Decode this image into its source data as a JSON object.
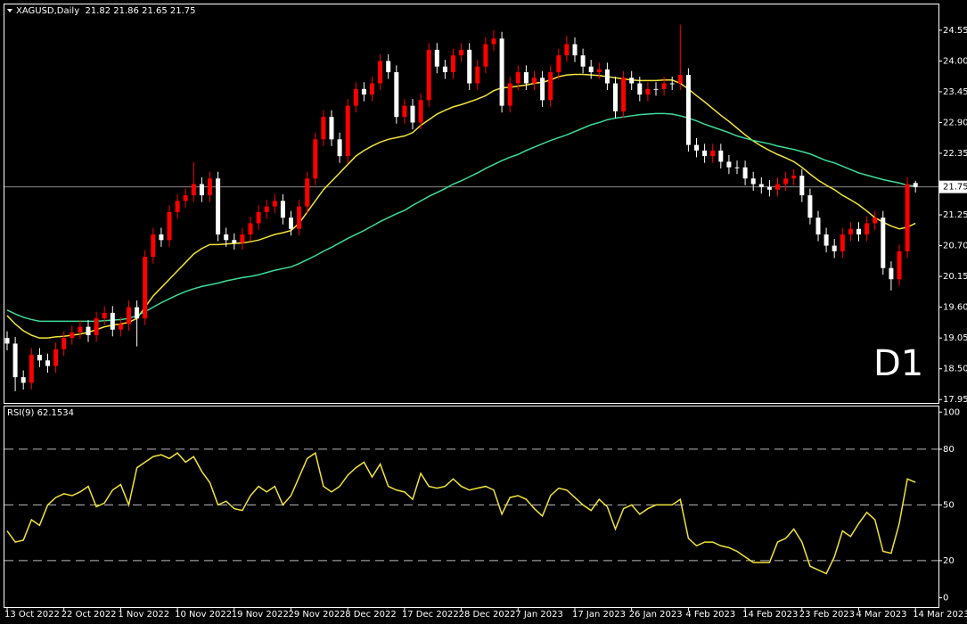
{
  "chart_data": [
    {
      "type": "candlestick",
      "title": "XAGUSD,Daily  21.82 21.86 21.65 21.75",
      "categories": [
        "13 Oct 2022",
        null,
        null,
        null,
        null,
        null,
        null,
        "22 Oct 2022",
        null,
        null,
        null,
        null,
        null,
        null,
        "1 Nov 2022",
        null,
        null,
        null,
        null,
        null,
        null,
        "10 Nov 2022",
        null,
        null,
        null,
        null,
        null,
        null,
        "19 Nov 2022",
        null,
        null,
        null,
        null,
        null,
        null,
        "29 Nov 2022",
        null,
        null,
        null,
        null,
        null,
        null,
        "8 Dec 2022",
        null,
        null,
        null,
        null,
        null,
        null,
        "17 Dec 2022",
        null,
        null,
        null,
        null,
        null,
        null,
        "28 Dec 2022",
        null,
        null,
        null,
        null,
        null,
        null,
        "7 Jan 2023",
        null,
        null,
        null,
        null,
        null,
        null,
        "17 Jan 2023",
        null,
        null,
        null,
        null,
        null,
        null,
        "26 Jan 2023",
        null,
        null,
        null,
        null,
        null,
        null,
        "4 Feb 2023",
        null,
        null,
        null,
        null,
        null,
        null,
        "14 Feb 2023",
        null,
        null,
        null,
        null,
        null,
        null,
        "23 Feb 2023",
        null,
        null,
        null,
        null,
        null,
        null,
        "4 Mar 2023",
        null,
        null,
        null,
        null,
        null,
        null,
        "14 Mar 2023"
      ],
      "open": [
        19.05,
        18.95,
        18.35,
        18.25,
        18.75,
        18.65,
        18.55,
        18.85,
        19.05,
        19.15,
        19.25,
        19.1,
        19.4,
        19.5,
        19.2,
        19.3,
        19.6,
        19.4,
        20.5,
        20.9,
        20.8,
        21.3,
        21.5,
        21.6,
        21.8,
        21.6,
        21.9,
        20.9,
        20.8,
        20.75,
        20.9,
        21.1,
        21.3,
        21.4,
        21.5,
        21.2,
        21.0,
        21.4,
        21.9,
        22.6,
        23.0,
        22.6,
        22.3,
        23.2,
        23.5,
        23.4,
        23.6,
        24.0,
        23.8,
        23.0,
        23.2,
        22.9,
        23.3,
        24.2,
        23.9,
        23.8,
        24.1,
        24.2,
        23.6,
        23.9,
        24.3,
        24.4,
        23.2,
        23.6,
        23.8,
        23.6,
        23.7,
        23.3,
        23.8,
        24.1,
        24.3,
        24.1,
        23.9,
        23.8,
        23.85,
        23.6,
        23.1,
        23.7,
        23.6,
        23.4,
        23.5,
        23.5,
        23.6,
        23.6,
        23.75,
        22.5,
        22.4,
        22.3,
        22.4,
        22.2,
        22.1,
        22.1,
        21.9,
        21.8,
        21.75,
        21.7,
        21.8,
        21.9,
        21.95,
        21.6,
        21.2,
        20.9,
        20.7,
        20.6,
        20.9,
        21.0,
        20.9,
        21.1,
        21.2,
        20.3,
        20.1,
        20.6,
        21.82
      ],
      "high": [
        19.17,
        19.07,
        18.47,
        18.87,
        18.87,
        18.77,
        18.97,
        19.17,
        19.27,
        19.37,
        19.37,
        19.52,
        19.62,
        19.62,
        19.42,
        19.72,
        19.72,
        20.62,
        21.02,
        21.02,
        21.42,
        21.62,
        21.72,
        22.2,
        21.92,
        22.02,
        22.02,
        21.02,
        20.92,
        21.02,
        21.22,
        21.42,
        21.52,
        21.62,
        21.62,
        21.32,
        21.52,
        22.02,
        22.72,
        23.12,
        23.12,
        22.72,
        23.32,
        23.62,
        23.62,
        23.72,
        24.12,
        24.12,
        23.92,
        23.32,
        23.32,
        23.42,
        24.32,
        24.32,
        24.02,
        24.22,
        24.32,
        24.32,
        24.02,
        24.42,
        24.55,
        24.52,
        23.72,
        23.92,
        23.92,
        23.82,
        23.82,
        23.92,
        24.22,
        24.45,
        24.42,
        24.22,
        24.02,
        23.97,
        23.97,
        23.72,
        23.82,
        23.82,
        23.72,
        23.62,
        23.62,
        23.72,
        23.72,
        24.65,
        23.87,
        22.62,
        22.52,
        22.52,
        22.52,
        22.32,
        22.22,
        22.22,
        22.02,
        21.92,
        21.87,
        21.92,
        22.02,
        22.07,
        22.07,
        21.72,
        21.32,
        21.02,
        20.82,
        21.02,
        21.12,
        21.12,
        21.22,
        21.32,
        21.32,
        20.42,
        20.72,
        21.92,
        21.86
      ],
      "low": [
        18.83,
        18.1,
        18.13,
        18.13,
        18.53,
        18.43,
        18.43,
        18.73,
        18.93,
        19.03,
        18.98,
        18.98,
        19.28,
        19.08,
        19.08,
        19.18,
        18.9,
        19.28,
        20.38,
        20.68,
        20.68,
        21.18,
        21.38,
        21.48,
        21.48,
        21.48,
        20.78,
        20.68,
        20.63,
        20.63,
        20.78,
        20.98,
        21.18,
        21.28,
        21.08,
        20.88,
        20.88,
        21.28,
        21.78,
        22.48,
        22.48,
        22.18,
        22.18,
        23.08,
        23.28,
        23.28,
        23.48,
        23.68,
        22.88,
        22.88,
        22.78,
        22.78,
        23.18,
        23.78,
        23.68,
        23.68,
        23.98,
        23.48,
        23.48,
        23.78,
        24.18,
        23.08,
        23.08,
        23.48,
        23.48,
        23.48,
        23.18,
        23.18,
        23.68,
        23.98,
        23.98,
        23.78,
        23.68,
        23.68,
        23.48,
        22.98,
        22.98,
        23.48,
        23.28,
        23.28,
        23.38,
        23.38,
        23.48,
        23.48,
        22.38,
        22.28,
        22.18,
        22.18,
        22.08,
        21.98,
        21.98,
        21.78,
        21.68,
        21.63,
        21.58,
        21.58,
        21.68,
        21.78,
        21.48,
        21.08,
        20.78,
        20.58,
        20.48,
        20.48,
        20.78,
        20.78,
        20.78,
        20.98,
        20.18,
        19.9,
        19.98,
        20.48,
        21.65
      ],
      "close": [
        18.95,
        18.35,
        18.25,
        18.75,
        18.65,
        18.55,
        18.85,
        19.05,
        19.15,
        19.25,
        19.1,
        19.4,
        19.5,
        19.2,
        19.3,
        19.6,
        19.4,
        20.5,
        20.9,
        20.8,
        21.3,
        21.5,
        21.6,
        21.8,
        21.6,
        21.9,
        20.9,
        20.8,
        20.75,
        20.9,
        21.1,
        21.3,
        21.4,
        21.5,
        21.2,
        21.0,
        21.4,
        21.9,
        22.6,
        23.0,
        22.6,
        22.3,
        23.2,
        23.5,
        23.4,
        23.6,
        24.0,
        23.8,
        23.0,
        23.2,
        22.9,
        23.3,
        24.2,
        23.9,
        23.8,
        24.1,
        24.2,
        23.6,
        23.9,
        24.3,
        24.4,
        23.2,
        23.6,
        23.8,
        23.6,
        23.7,
        23.3,
        23.8,
        24.1,
        24.3,
        24.1,
        23.9,
        23.8,
        23.85,
        23.6,
        23.1,
        23.7,
        23.6,
        23.4,
        23.5,
        23.5,
        23.6,
        23.6,
        23.75,
        22.5,
        22.4,
        22.3,
        22.4,
        22.2,
        22.1,
        22.1,
        21.9,
        21.8,
        21.75,
        21.7,
        21.8,
        21.9,
        21.95,
        21.6,
        21.2,
        20.9,
        20.7,
        20.6,
        20.9,
        21.0,
        20.9,
        21.1,
        21.2,
        20.3,
        20.1,
        20.6,
        21.8,
        21.75
      ],
      "up_color": "#ff0000",
      "down_color": "#ffffff",
      "lines": [
        {
          "color": "#f2e33a",
          "values": [
            19.45,
            19.3,
            19.18,
            19.1,
            19.05,
            19.05,
            19.07,
            19.08,
            19.1,
            19.12,
            19.15,
            19.2,
            19.25,
            19.28,
            19.3,
            19.33,
            19.4,
            19.6,
            19.8,
            19.95,
            20.1,
            20.25,
            20.4,
            20.55,
            20.65,
            20.72,
            20.72,
            20.73,
            20.74,
            20.75,
            20.77,
            20.8,
            20.85,
            20.9,
            20.93,
            20.97,
            21.1,
            21.3,
            21.5,
            21.7,
            21.85,
            22.0,
            22.15,
            22.3,
            22.4,
            22.48,
            22.55,
            22.6,
            22.63,
            22.66,
            22.72,
            22.85,
            22.95,
            23.05,
            23.12,
            23.18,
            23.22,
            23.27,
            23.32,
            23.38,
            23.47,
            23.52,
            23.53,
            23.55,
            23.57,
            23.6,
            23.62,
            23.66,
            23.72,
            23.75,
            23.76,
            23.76,
            23.75,
            23.74,
            23.72,
            23.7,
            23.68,
            23.66,
            23.65,
            23.65,
            23.65,
            23.66,
            23.66,
            23.6,
            23.5,
            23.38,
            23.27,
            23.15,
            23.03,
            22.92,
            22.8,
            22.68,
            22.57,
            22.48,
            22.4,
            22.33,
            22.27,
            22.2,
            22.1,
            21.98,
            21.87,
            21.78,
            21.7,
            21.6,
            21.52,
            21.43,
            21.32,
            21.2,
            21.12,
            21.05,
            21.0,
            21.03,
            21.1
          ]
        },
        {
          "color": "#3ddc9a",
          "values": [
            19.55,
            19.48,
            19.42,
            19.38,
            19.35,
            19.35,
            19.35,
            19.35,
            19.35,
            19.35,
            19.35,
            19.35,
            19.36,
            19.37,
            19.38,
            19.4,
            19.45,
            19.52,
            19.6,
            19.68,
            19.75,
            19.82,
            19.88,
            19.93,
            19.97,
            20.0,
            20.03,
            20.07,
            20.1,
            20.13,
            20.15,
            20.18,
            20.22,
            20.26,
            20.29,
            20.32,
            20.38,
            20.45,
            20.52,
            20.6,
            20.67,
            20.75,
            20.83,
            20.9,
            20.97,
            21.05,
            21.13,
            21.2,
            21.27,
            21.33,
            21.42,
            21.5,
            21.58,
            21.65,
            21.72,
            21.8,
            21.86,
            21.93,
            22.0,
            22.08,
            22.15,
            22.22,
            22.28,
            22.33,
            22.4,
            22.46,
            22.52,
            22.58,
            22.63,
            22.68,
            22.74,
            22.8,
            22.86,
            22.9,
            22.95,
            22.98,
            23.0,
            23.02,
            23.04,
            23.05,
            23.06,
            23.06,
            23.05,
            23.02,
            22.98,
            22.93,
            22.87,
            22.82,
            22.77,
            22.72,
            22.66,
            22.62,
            22.58,
            22.55,
            22.52,
            22.48,
            22.45,
            22.42,
            22.38,
            22.34,
            22.28,
            22.22,
            22.18,
            22.12,
            22.06,
            22.0,
            21.96,
            21.92,
            21.88,
            21.85,
            21.82,
            21.78,
            21.76
          ]
        }
      ],
      "ylim": [
        17.89,
        25.01
      ],
      "yticks": [
        24.55,
        {
          "value": 24,
          "label": "24.00"
        },
        23.45,
        {
          "value": 22.9,
          "label": "22.90"
        },
        22.35,
        21.25,
        {
          "value": 20.7,
          "label": "20.70"
        },
        20.15,
        {
          "value": 19.6,
          "label": "19.60"
        },
        19.05,
        {
          "value": 18.5,
          "label": "18.50"
        },
        17.95
      ],
      "current_price": 21.75,
      "annotation": "D1",
      "annotation_color": "#e60000"
    },
    {
      "type": "line",
      "title": "RSI(9) 62.1534",
      "color": "#f2e33a",
      "values": [
        36,
        30,
        31,
        42,
        39,
        50,
        54,
        56,
        55,
        57,
        60,
        49,
        51,
        58,
        61,
        50,
        70,
        73,
        76,
        77,
        75,
        78,
        73,
        76,
        68,
        62,
        50,
        52,
        48,
        47,
        55,
        60,
        57,
        60,
        50,
        55,
        65,
        75,
        78,
        60,
        57,
        60,
        66,
        70,
        73,
        65,
        72,
        60,
        58,
        57,
        53,
        67,
        60,
        59,
        60,
        64,
        60,
        58,
        59,
        60,
        58,
        45,
        54,
        55,
        53,
        48,
        44,
        55,
        59,
        58,
        54,
        50,
        47,
        53,
        49,
        37,
        48,
        50,
        45,
        48,
        50,
        50,
        50,
        53,
        32,
        28,
        30,
        30,
        28,
        27,
        25,
        22,
        19,
        19,
        19,
        30,
        32,
        37,
        30,
        17,
        15,
        13,
        22,
        36,
        33,
        40,
        46,
        42,
        25,
        24,
        40,
        64,
        62.1534
      ],
      "ylim": [
        -5,
        103
      ],
      "yticks": [
        100,
        80,
        50,
        20,
        0
      ],
      "levels": [
        80,
        50,
        20
      ]
    }
  ]
}
